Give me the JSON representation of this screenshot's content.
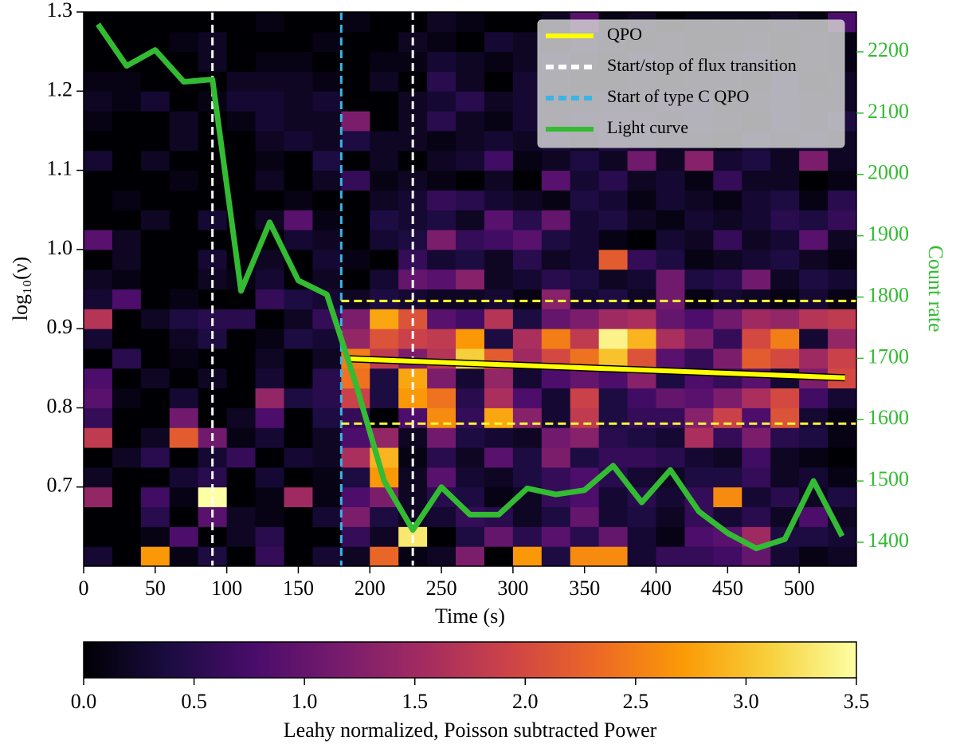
{
  "chart_data": {
    "type": "heatmap",
    "xlabel": "Time (s)",
    "ylabel": "log₁₀(ν)",
    "y2label": "Count rate",
    "colorbar_label": "Leahy normalized, Poisson subtracted Power",
    "colormap": "inferno",
    "xlim": [
      0,
      540
    ],
    "ylim": [
      0.6,
      1.3
    ],
    "y2lim": [
      1361,
      2265
    ],
    "xticks": [
      0,
      50,
      100,
      150,
      200,
      250,
      300,
      350,
      400,
      450,
      500
    ],
    "yticks": [
      0.7,
      0.8,
      0.9,
      {
        "value": 1.0,
        "label": "1.0"
      },
      1.1,
      1.2,
      1.3
    ],
    "y2ticks": [
      1400,
      1500,
      1600,
      1700,
      1800,
      1900,
      2000,
      2100,
      2200
    ],
    "clim": [
      0,
      3.5
    ],
    "cticks": [
      {
        "value": 0,
        "label": "0.0"
      },
      0.5,
      {
        "value": 1,
        "label": "1.0"
      },
      1.5,
      {
        "value": 2,
        "label": "2.0"
      },
      2.5,
      {
        "value": 3,
        "label": "3.0"
      },
      3.5
    ],
    "xbins": [
      0,
      20,
      40,
      60,
      80,
      100,
      120,
      140,
      160,
      180,
      200,
      220,
      240,
      260,
      280,
      300,
      320,
      340,
      360,
      380,
      400,
      420,
      440,
      460,
      480,
      500,
      520,
      540
    ],
    "ybins": [
      0.6,
      0.625,
      0.65,
      0.675,
      0.7,
      0.725,
      0.75,
      0.775,
      0.8,
      0.825,
      0.85,
      0.875,
      0.9,
      0.925,
      0.95,
      0.975,
      1.0,
      1.025,
      1.05,
      1.075,
      1.1,
      1.125,
      1.15,
      1.175,
      1.2,
      1.225,
      1.25,
      1.275,
      1.3
    ],
    "z": [
      [
        0.3,
        0,
        2.7,
        0.1,
        0.4,
        0,
        0.6,
        0,
        0.3,
        0.2,
        2.3,
        0.1,
        0.2,
        1.2,
        0,
        2.7,
        0.4,
        2.6,
        2.6,
        0.3,
        0.6,
        0.6,
        0.7,
        1.0,
        0.3,
        0.1,
        0.2
      ],
      [
        0,
        0,
        0.1,
        0.8,
        0,
        0.2,
        0.5,
        0,
        0,
        0.6,
        0.2,
        3.3,
        0,
        0.4,
        1.0,
        0.5,
        0.9,
        0.5,
        1.0,
        0.3,
        0.1,
        0.8,
        0.9,
        1.5,
        0.4,
        0.4,
        0.3
      ],
      [
        0,
        0,
        0.5,
        0,
        0.9,
        0.2,
        0.1,
        0,
        0.3,
        1.2,
        0.4,
        0.2,
        0.3,
        0.6,
        0.5,
        0.2,
        0.4,
        1.0,
        0.3,
        0.4,
        0.2,
        0.6,
        0.3,
        0.5,
        0.2,
        0.8,
        0.2
      ],
      [
        1.4,
        0,
        0.7,
        0.1,
        3.5,
        0,
        0.1,
        1.5,
        0.1,
        0.8,
        1.2,
        0.2,
        0.5,
        0.4,
        0.1,
        0.2,
        0.6,
        0.8,
        0.3,
        0.5,
        0.3,
        0.6,
        2.6,
        0.3,
        0.5,
        0.2,
        0.4
      ],
      [
        0.2,
        0,
        0,
        0.3,
        0.5,
        0,
        0.3,
        0,
        0.1,
        0.4,
        2.7,
        0.2,
        0.9,
        0.3,
        0.2,
        0.4,
        0.6,
        0.8,
        0.5,
        0.3,
        0.2,
        0.4,
        0.4,
        0.6,
        0.2,
        0.3,
        0.1
      ],
      [
        0,
        0.2,
        0.5,
        0,
        0.3,
        0.6,
        0,
        0.3,
        0.2,
        1.6,
        2.9,
        0.1,
        0.5,
        0.2,
        0.9,
        0.4,
        1.2,
        0.4,
        0.6,
        0.6,
        0.5,
        0.3,
        0.2,
        0.7,
        0.2,
        0.1,
        0
      ],
      [
        1.8,
        0,
        0.2,
        2.2,
        1.1,
        0.1,
        0.3,
        0,
        0.2,
        0.8,
        1.4,
        0.2,
        1.1,
        0.4,
        0.3,
        0.2,
        1.1,
        1.3,
        0.5,
        0.4,
        0.3,
        1.6,
        0.6,
        1.2,
        0.5,
        0.4,
        0.1
      ],
      [
        0.6,
        0,
        0,
        1.1,
        0,
        0.2,
        0.8,
        0,
        0.4,
        0.6,
        0,
        0.8,
        2.6,
        0.6,
        2.8,
        1.3,
        0.3,
        1.8,
        0.4,
        0.6,
        0.6,
        1.3,
        1.9,
        0.8,
        2.1,
        0.3,
        0.1
      ],
      [
        0.9,
        0.1,
        0,
        0.3,
        0,
        0,
        1.4,
        0.4,
        0.5,
        1.9,
        0.4,
        2.7,
        2.4,
        0.5,
        1.6,
        0.8,
        0.3,
        1.9,
        0.4,
        0.7,
        1.0,
        0.9,
        1.2,
        1.6,
        2.0,
        0.7,
        0.3
      ],
      [
        0.8,
        0,
        0.2,
        0,
        0.2,
        0,
        0.3,
        0,
        0.5,
        2.4,
        0.4,
        2.8,
        1.2,
        0.3,
        1.4,
        0.3,
        0.8,
        1.0,
        0.8,
        1.3,
        0.4,
        0.8,
        0.6,
        0.9,
        0.3,
        1.2,
        2.0
      ],
      [
        0,
        0.5,
        0,
        0.1,
        0,
        0,
        0.2,
        0,
        0.2,
        2.5,
        1.8,
        1.2,
        1.7,
        3.1,
        2.2,
        1.5,
        2.0,
        2.4,
        3.0,
        2.1,
        0.9,
        0.6,
        1.2,
        2.2,
        2.0,
        1.5,
        1.9
      ],
      [
        0.3,
        0,
        0,
        0.2,
        0.4,
        0,
        0.1,
        0.4,
        0.3,
        1.4,
        2.1,
        1.9,
        1.8,
        2.7,
        0.4,
        1.6,
        2.5,
        1.8,
        3.4,
        2.9,
        1.6,
        1.2,
        0.6,
        2.0,
        2.5,
        0.3,
        1.4
      ],
      [
        1.7,
        0,
        0.2,
        0.4,
        0.5,
        0.5,
        0,
        0.2,
        0.6,
        1.2,
        2.8,
        2.1,
        0.9,
        0.7,
        1.7,
        0.4,
        1.0,
        1.2,
        1.5,
        1.6,
        1.0,
        0.8,
        1.1,
        1.5,
        1.4,
        1.7,
        1.8
      ],
      [
        0.3,
        0.8,
        0,
        0.1,
        0,
        0,
        0.6,
        0.4,
        0.3,
        0.2,
        0.4,
        0.3,
        0.2,
        0.2,
        0.3,
        0.1,
        1.3,
        0.3,
        0.4,
        0.2,
        1.1,
        0.1,
        0.3,
        0.2,
        0.1,
        0.3,
        0.1
      ],
      [
        0.2,
        0.1,
        0,
        0,
        0.2,
        0.1,
        0.3,
        0,
        0.2,
        0,
        0.3,
        1.0,
        0.9,
        1.3,
        0.2,
        0.3,
        0.5,
        0.4,
        0.2,
        0.3,
        1.1,
        0.4,
        0.5,
        1.1,
        0.2,
        0.4,
        0.3
      ],
      [
        0,
        0.2,
        0,
        0,
        0.3,
        0,
        0.2,
        0,
        0.3,
        0.1,
        0,
        0.6,
        0.3,
        0.4,
        0.2,
        0.5,
        0.2,
        0.3,
        2.2,
        0.6,
        0.4,
        0.1,
        0.2,
        0.3,
        0.4,
        0.2,
        0.1
      ],
      [
        0.9,
        0.2,
        0,
        0,
        0,
        0,
        0,
        0.3,
        0.2,
        0,
        0.3,
        0.4,
        1.2,
        0.6,
        0.7,
        0.9,
        0.4,
        0.3,
        0.1,
        0,
        0.3,
        0.2,
        0.6,
        0.2,
        0.3,
        0.9,
        0.2
      ],
      [
        0,
        0,
        0.2,
        0,
        0.3,
        0,
        0.2,
        0.9,
        0.1,
        0,
        0.4,
        0.3,
        0.4,
        0.2,
        0.9,
        0.5,
        1.0,
        0.3,
        0.4,
        0.2,
        0.1,
        0.3,
        0.2,
        0.3,
        0.5,
        0.4,
        0.6
      ],
      [
        0,
        0.1,
        0,
        0,
        0,
        0,
        0,
        0.1,
        0,
        0,
        0.2,
        0.3,
        0.6,
        0.5,
        0.3,
        0.2,
        0.1,
        0.4,
        0.3,
        0.1,
        0.3,
        0.2,
        0.1,
        0.3,
        0.4,
        0.1,
        0.5
      ],
      [
        0,
        0,
        0,
        0.1,
        0,
        0,
        0.2,
        0,
        0.2,
        0.6,
        0.1,
        0.2,
        0.1,
        0,
        0.2,
        0,
        0.9,
        0.3,
        0.5,
        0.2,
        0.3,
        0.1,
        0.6,
        0.2,
        0.2,
        0,
        0.1
      ],
      [
        0.3,
        0,
        0.2,
        0,
        0,
        0,
        0.1,
        0,
        0.4,
        0,
        0.2,
        0,
        0.2,
        0.3,
        0.7,
        0.1,
        0.2,
        0.4,
        0.2,
        1.1,
        0.2,
        1.3,
        0.3,
        0.4,
        0.2,
        1.2,
        0.2
      ],
      [
        0,
        0,
        0,
        0.2,
        0,
        0,
        0.2,
        0.3,
        0.2,
        0.4,
        0.2,
        0.2,
        0.1,
        0.2,
        0.3,
        0.2,
        0.3,
        0.2,
        0.4,
        0.3,
        0.2,
        0.2,
        0.1,
        0.3,
        0.2,
        0.3,
        0.2
      ],
      [
        0.1,
        0,
        0,
        0.2,
        0,
        0.1,
        0.3,
        0.2,
        0.2,
        1.2,
        0,
        0.2,
        0.5,
        0.2,
        0.1,
        0.3,
        0.2,
        0.3,
        0.4,
        0.4,
        0.2,
        0.3,
        0.2,
        0.1,
        0.3,
        0.2,
        0.4
      ],
      [
        0.2,
        0.1,
        0.3,
        0,
        0.1,
        0.3,
        0.3,
        0.2,
        0.3,
        0,
        0,
        0.2,
        0.3,
        0.5,
        0.2,
        0.3,
        0.2,
        0.2,
        0.3,
        0.2,
        0.4,
        0.3,
        0.1,
        0.2,
        0.3,
        0.2,
        0.2
      ],
      [
        0.1,
        0.1,
        0,
        0,
        0,
        0.2,
        0.2,
        0.2,
        0.1,
        0,
        0.2,
        0,
        0.5,
        0.2,
        0,
        0.3,
        0.2,
        0.1,
        0.1,
        0.2,
        0.1,
        0.2,
        0.2,
        0.1,
        0.3,
        0.1,
        0.2
      ],
      [
        0,
        0,
        0,
        0,
        0.2,
        0,
        0.1,
        0.1,
        0,
        0,
        0.1,
        0.1,
        0.3,
        0.2,
        0.1,
        0.2,
        0.3,
        0.2,
        0.1,
        0.3,
        0.2,
        0.1,
        0.2,
        0.3,
        0.1,
        0.2,
        0.1
      ],
      [
        0,
        0,
        0,
        0.1,
        0.2,
        0,
        0,
        0,
        0.1,
        0,
        0,
        0.2,
        0.1,
        0,
        0.3,
        0.2,
        0.1,
        0.3,
        0.2,
        0.1,
        0.2,
        0.1,
        0.1,
        0.2,
        0.1,
        0.2,
        0.1
      ],
      [
        0,
        0,
        0,
        0,
        0,
        0,
        0.1,
        0,
        0,
        0.1,
        0,
        0,
        0.2,
        0.1,
        0,
        0,
        0.2,
        0.9,
        0.1,
        0.2,
        0,
        0.1,
        0.1,
        0.1,
        0.2,
        0.1,
        0.8
      ]
    ],
    "qpo": {
      "name": "QPO",
      "color": "#ffff00",
      "x": [
        185,
        532
      ],
      "y": [
        0.862,
        0.838
      ]
    },
    "transition": {
      "name": "Start/stop of flux transition",
      "color": "#ffffff",
      "x": [
        90,
        230
      ]
    },
    "type_c_start": {
      "name": "Start of type C QPO",
      "color": "#3ab4e6",
      "x": [
        180
      ]
    },
    "qpo_band": {
      "color": "#ffff33",
      "x_start": 180,
      "values": [
        0.78,
        0.935
      ]
    },
    "light_curve": {
      "name": "Light curve",
      "color": "#33bb33",
      "axis": "y2",
      "x": [
        10,
        30,
        50,
        70,
        90,
        110,
        130,
        150,
        170,
        190,
        210,
        230,
        250,
        270,
        290,
        310,
        330,
        350,
        370,
        390,
        410,
        430,
        450,
        470,
        490,
        510,
        530
      ],
      "values": [
        2245,
        2177,
        2203,
        2151,
        2155,
        1810,
        1922,
        1827,
        1804,
        1660,
        1500,
        1420,
        1490,
        1445,
        1445,
        1488,
        1478,
        1485,
        1525,
        1465,
        1518,
        1450,
        1415,
        1390,
        1405,
        1500,
        1410
      ]
    },
    "legend": "upper right"
  }
}
